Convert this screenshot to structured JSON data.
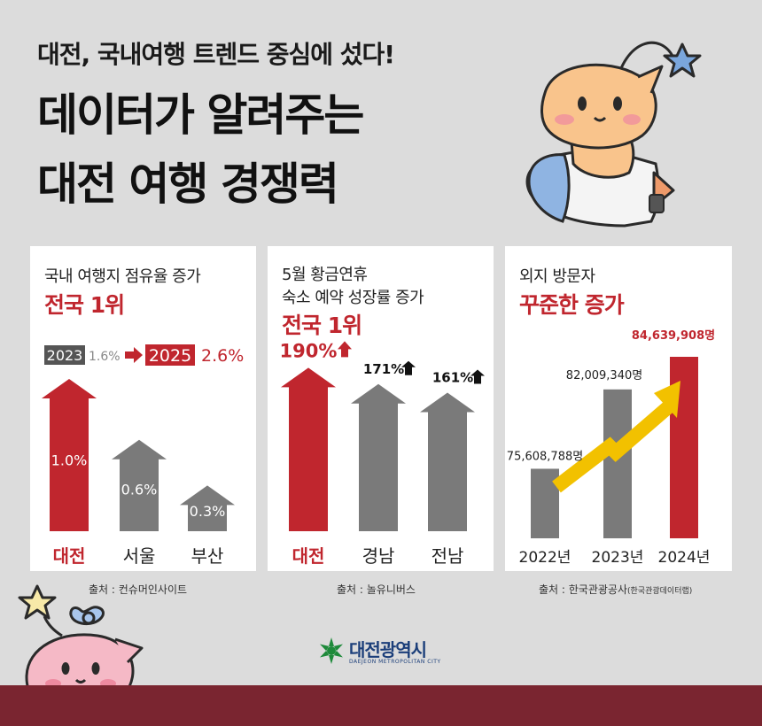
{
  "header": {
    "subtitle": "대전, 국내여행 트렌드 중심에 섰다!",
    "title_line1": "데이터가 알려주는",
    "title_line2": "대전 여행 경쟁력"
  },
  "chart_data": [
    {
      "type": "bar",
      "title_lines": [
        "국내 여행지 점유율 증가"
      ],
      "highlight": "전국 1위",
      "comparison": {
        "from_year": "2023",
        "from_value": "1.6%",
        "to_year": "2025",
        "to_value": "2.6%"
      },
      "categories": [
        "대전",
        "서울",
        "부산"
      ],
      "values": [
        1.0,
        0.6,
        0.3
      ],
      "value_labels": [
        "1.0%",
        "0.6%",
        "0.3%"
      ],
      "unit": "%",
      "source": "출처 : 컨슈머인사이트"
    },
    {
      "type": "bar",
      "title_lines": [
        "5월 황금연휴",
        "숙소 예약 성장률 증가"
      ],
      "highlight": "전국 1위",
      "categories": [
        "대전",
        "경남",
        "전남"
      ],
      "values": [
        190,
        171,
        161
      ],
      "value_labels": [
        "190%",
        "171%",
        "161%"
      ],
      "unit": "%",
      "source": "출처 : 놀유니버스"
    },
    {
      "type": "bar",
      "title_lines": [
        "외지 방문자"
      ],
      "highlight": "꾸준한 증가",
      "categories": [
        "2022년",
        "2023년",
        "2024년"
      ],
      "values": [
        75608788,
        82009340,
        84639908
      ],
      "value_labels": [
        "75,608,788명",
        "82,009,340명",
        "84,639,908명"
      ],
      "unit": "명",
      "source_main": "출처 : 한국관광공사",
      "source_paren": "(한국관광데이터랩)"
    }
  ],
  "colors": {
    "accent": "#c0262e",
    "gray": "#7a7a7a",
    "arrow": "#f2c100",
    "footer": "#7a2530",
    "brand": "#1c3f7a"
  },
  "brand": {
    "name": "대전광역시",
    "sub": "DAEJEON METROPOLITAN CITY",
    "icon": "daejeon-emblem-icon"
  },
  "mascots": [
    "orange-mascot-on-rocket",
    "pink-mascot-with-bow"
  ]
}
